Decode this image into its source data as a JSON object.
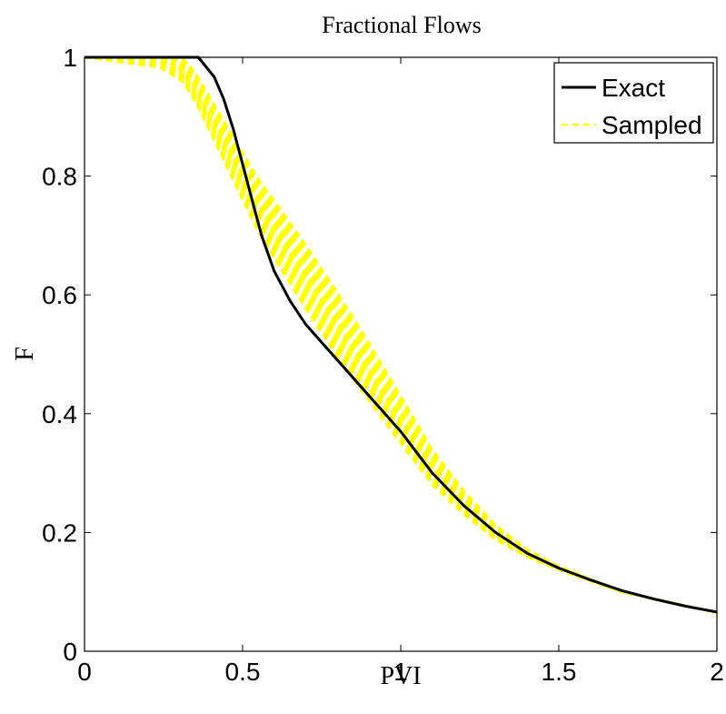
{
  "chart_data": {
    "type": "line",
    "title": "Fractional Flows",
    "xlabel": "PVI",
    "ylabel": "F",
    "xlim": [
      0,
      2
    ],
    "ylim": [
      0,
      1
    ],
    "xticks": [
      0,
      0.5,
      1,
      1.5,
      2
    ],
    "xtick_labels": [
      "0",
      "0.5",
      "1",
      "1.5",
      "2"
    ],
    "yticks": [
      0,
      0.2,
      0.4,
      0.6,
      0.8,
      1
    ],
    "ytick_labels": [
      "0",
      "0.2",
      "0.4",
      "0.6",
      "0.8",
      "1"
    ],
    "grid": false,
    "legend": "top-right",
    "series": [
      {
        "name": "Exact",
        "color": "#000000",
        "style": "solid",
        "x": [
          0,
          0.36,
          0.41,
          0.44,
          0.47,
          0.5,
          0.53,
          0.56,
          0.6,
          0.65,
          0.7,
          0.8,
          0.9,
          1.0,
          1.1,
          1.2,
          1.3,
          1.4,
          1.5,
          1.6,
          1.7,
          1.8,
          1.9,
          2.0
        ],
        "y": [
          1,
          1,
          0.967,
          0.93,
          0.88,
          0.82,
          0.76,
          0.7,
          0.64,
          0.59,
          0.55,
          0.49,
          0.43,
          0.37,
          0.3,
          0.245,
          0.2,
          0.165,
          0.14,
          0.12,
          0.102,
          0.088,
          0.076,
          0.066
        ]
      },
      {
        "name": "Sampled",
        "color": "#ffff00",
        "style": "dashed",
        "x": [
          0,
          0.27,
          0.31,
          0.35,
          0.4,
          0.45,
          0.5,
          0.55,
          0.6,
          0.7,
          0.8,
          0.9,
          1.0,
          1.1,
          1.2,
          1.3,
          1.4,
          1.5,
          1.7,
          2.0
        ],
        "y": [
          1,
          1,
          0.98,
          0.95,
          0.9,
          0.85,
          0.8,
          0.75,
          0.71,
          0.63,
          0.55,
          0.47,
          0.39,
          0.31,
          0.25,
          0.2,
          0.165,
          0.14,
          0.1,
          0.065
        ]
      }
    ]
  }
}
